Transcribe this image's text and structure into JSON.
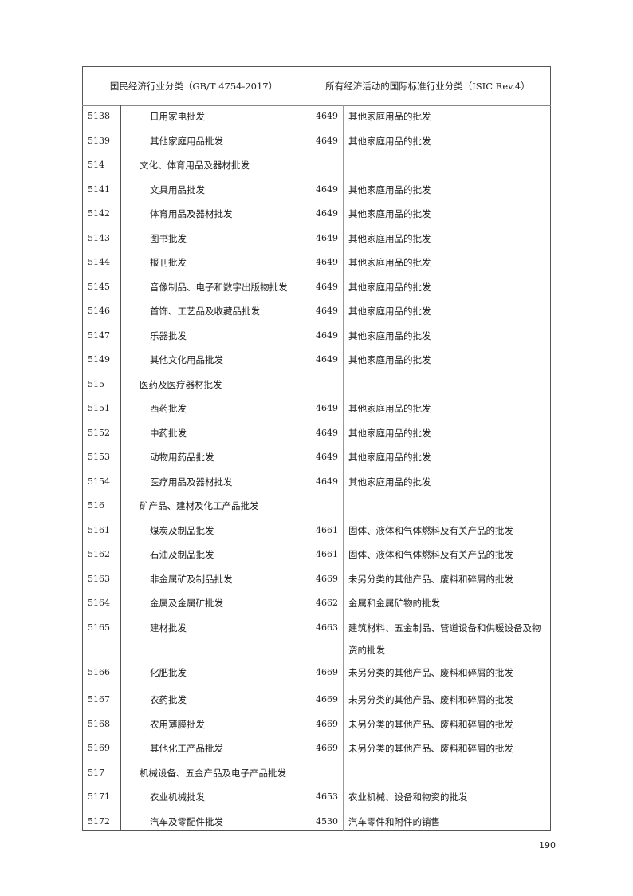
{
  "header": {
    "left": "国民经济行业分类（GB/T 4754-2017）",
    "right": "所有经济活动的国际标准行业分类（ISIC Rev.4）"
  },
  "rows": [
    {
      "code": "5138",
      "name": "日用家电批发",
      "level": 3,
      "isic": "4649",
      "isic_name": "其他家庭用品的批发"
    },
    {
      "code": "5139",
      "name": "其他家庭用品批发",
      "level": 3,
      "isic": "4649",
      "isic_name": "其他家庭用品的批发"
    },
    {
      "code": "514",
      "name": "文化、体育用品及器材批发",
      "level": 2,
      "isic": "",
      "isic_name": ""
    },
    {
      "code": "5141",
      "name": "文具用品批发",
      "level": 3,
      "isic": "4649",
      "isic_name": "其他家庭用品的批发"
    },
    {
      "code": "5142",
      "name": "体育用品及器材批发",
      "level": 3,
      "isic": "4649",
      "isic_name": "其他家庭用品的批发"
    },
    {
      "code": "5143",
      "name": "图书批发",
      "level": 3,
      "isic": "4649",
      "isic_name": "其他家庭用品的批发"
    },
    {
      "code": "5144",
      "name": "报刊批发",
      "level": 3,
      "isic": "4649",
      "isic_name": "其他家庭用品的批发"
    },
    {
      "code": "5145",
      "name": "音像制品、电子和数字出版物批发",
      "level": 3,
      "isic": "4649",
      "isic_name": "其他家庭用品的批发"
    },
    {
      "code": "5146",
      "name": "首饰、工艺品及收藏品批发",
      "level": 3,
      "isic": "4649",
      "isic_name": "其他家庭用品的批发"
    },
    {
      "code": "5147",
      "name": "乐器批发",
      "level": 3,
      "isic": "4649",
      "isic_name": "其他家庭用品的批发"
    },
    {
      "code": "5149",
      "name": "其他文化用品批发",
      "level": 3,
      "isic": "4649",
      "isic_name": "其他家庭用品的批发"
    },
    {
      "code": "515",
      "name": "医药及医疗器材批发",
      "level": 2,
      "isic": "",
      "isic_name": ""
    },
    {
      "code": "5151",
      "name": "西药批发",
      "level": 3,
      "isic": "4649",
      "isic_name": "其他家庭用品的批发"
    },
    {
      "code": "5152",
      "name": "中药批发",
      "level": 3,
      "isic": "4649",
      "isic_name": "其他家庭用品的批发"
    },
    {
      "code": "5153",
      "name": "动物用药品批发",
      "level": 3,
      "isic": "4649",
      "isic_name": "其他家庭用品的批发"
    },
    {
      "code": "5154",
      "name": "医疗用品及器材批发",
      "level": 3,
      "isic": "4649",
      "isic_name": "其他家庭用品的批发"
    },
    {
      "code": "516",
      "name": "矿产品、建材及化工产品批发",
      "level": 2,
      "isic": "",
      "isic_name": ""
    },
    {
      "code": "5161",
      "name": "煤炭及制品批发",
      "level": 3,
      "isic": "4661",
      "isic_name": "固体、液体和气体燃料及有关产品的批发"
    },
    {
      "code": "5162",
      "name": "石油及制品批发",
      "level": 3,
      "isic": "4661",
      "isic_name": "固体、液体和气体燃料及有关产品的批发"
    },
    {
      "code": "5163",
      "name": "非金属矿及制品批发",
      "level": 3,
      "isic": "4669",
      "isic_name": "未另分类的其他产品、废料和碎屑的批发"
    },
    {
      "code": "5164",
      "name": "金属及金属矿批发",
      "level": 3,
      "isic": "4662",
      "isic_name": "金属和金属矿物的批发"
    },
    {
      "code": "5165",
      "name": "建材批发",
      "level": 3,
      "isic": "4663",
      "isic_name": "建筑材料、五金制品、管道设备和供暖设备及物",
      "isic_name_2": "资的批发"
    },
    {
      "code": "5166",
      "name": "化肥批发",
      "level": 3,
      "isic": "4669",
      "isic_name": "未另分类的其他产品、废料和碎屑的批发"
    },
    {
      "code": "5167",
      "name": "农药批发",
      "level": 3,
      "isic": "4669",
      "isic_name": "未另分类的其他产品、废料和碎屑的批发"
    },
    {
      "code": "5168",
      "name": "农用薄膜批发",
      "level": 3,
      "isic": "4669",
      "isic_name": "未另分类的其他产品、废料和碎屑的批发"
    },
    {
      "code": "5169",
      "name": "其他化工产品批发",
      "level": 3,
      "isic": "4669",
      "isic_name": "未另分类的其他产品、废料和碎屑的批发"
    },
    {
      "code": "517",
      "name": "机械设备、五金产品及电子产品批发",
      "level": 2,
      "isic": "",
      "isic_name": ""
    },
    {
      "code": "5171",
      "name": "农业机械批发",
      "level": 3,
      "isic": "4653",
      "isic_name": "农业机械、设备和物资的批发"
    },
    {
      "code": "5172",
      "name": "汽车及零配件批发",
      "level": 3,
      "isic": "4530",
      "isic_name": "汽车零件和附件的销售"
    }
  ],
  "page_number": "190"
}
